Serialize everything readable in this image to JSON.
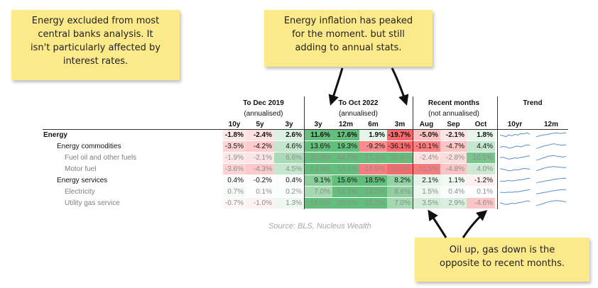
{
  "notes": {
    "note1": [
      "Energy excluded from most",
      "central banks analysis. It",
      "isn't particularly affected by",
      "interest rates."
    ],
    "note2": [
      "Energy inflation has peaked",
      "for the moment. but still",
      "adding to annual stats."
    ],
    "note3": [
      "Oil up, gas down is the",
      "opposite to recent months."
    ]
  },
  "source": "Source: BLS, Nucleus Wealth",
  "chart_data": {
    "type": "table",
    "groups": [
      {
        "title": "To Dec 2019",
        "subtitle": "(annualised)",
        "columns": [
          "10y",
          "5y",
          "3y"
        ]
      },
      {
        "title": "To Oct 2022",
        "subtitle": "(annualised)",
        "columns": [
          "3y",
          "12m",
          "6m",
          "3m"
        ]
      },
      {
        "title": "Recent months",
        "subtitle": "(not annualised)",
        "columns": [
          "Aug",
          "Sep",
          "Oct"
        ]
      },
      {
        "title": "Trend",
        "subtitle": "",
        "columns": [
          "10yr",
          "12m"
        ]
      }
    ],
    "rows": [
      {
        "label": "Energy",
        "level": 0,
        "bold": true,
        "muted": false,
        "values": [
          "-1.8%",
          "-2.4%",
          "2.6%",
          "11.6%",
          "17.6%",
          "1.9%",
          "-19.7%",
          "-5.0%",
          "-2.1%",
          "1.8%"
        ],
        "trend10": [
          0.5,
          0.45,
          0.3,
          0.55,
          0.4,
          0.6,
          0.5,
          0.7,
          0.65,
          0.8,
          0.6
        ],
        "trend12": [
          0.3,
          0.4,
          0.5,
          0.55,
          0.6,
          0.7,
          0.75,
          0.8,
          0.7,
          0.75,
          0.8
        ]
      },
      {
        "label": "Energy commodities",
        "level": 1,
        "bold": false,
        "muted": false,
        "values": [
          "-3.5%",
          "-4.2%",
          "4.6%",
          "13.6%",
          "19.3%",
          "-9.2%",
          "-36.1%",
          "-10.1%",
          "-4.7%",
          "4.4%"
        ],
        "trend10": [
          0.4,
          0.5,
          0.45,
          0.3,
          0.35,
          0.5,
          0.55,
          0.45,
          0.6,
          0.7,
          0.65
        ],
        "trend12": [
          0.25,
          0.35,
          0.5,
          0.6,
          0.65,
          0.8,
          0.85,
          0.75,
          0.7,
          0.65,
          0.7
        ]
      },
      {
        "label": "Fuel oil and other fuels",
        "level": 2,
        "bold": false,
        "muted": true,
        "values": [
          "-1.9%",
          "-2.1%",
          "6.6%",
          "20.3%",
          "44.2%",
          "17.3%",
          "20.9%",
          "-2.4%",
          "-2.8%",
          "10.5%"
        ],
        "trend10": [
          0.5,
          0.6,
          0.45,
          0.35,
          0.4,
          0.5,
          0.45,
          0.55,
          0.6,
          0.7,
          0.75
        ],
        "trend12": [
          0.2,
          0.3,
          0.45,
          0.55,
          0.7,
          0.75,
          0.8,
          0.7,
          0.65,
          0.6,
          0.7
        ]
      },
      {
        "label": "Motor fuel",
        "level": 2,
        "bold": false,
        "muted": true,
        "values": [
          "-3.6%",
          "-4.3%",
          "4.5%",
          "13.3%",
          "18.1%",
          "-10.5%",
          "-38.3%",
          "-10.5%",
          "-4.8%",
          "4.0%"
        ],
        "trend10": [
          0.55,
          0.5,
          0.4,
          0.3,
          0.35,
          0.45,
          0.4,
          0.5,
          0.6,
          0.55,
          0.5
        ],
        "trend12": [
          0.3,
          0.4,
          0.55,
          0.65,
          0.75,
          0.8,
          0.85,
          0.8,
          0.75,
          0.7,
          0.72
        ]
      },
      {
        "label": "Energy services",
        "level": 1,
        "bold": false,
        "muted": false,
        "values": [
          "0.4%",
          "-0.2%",
          "0.4%",
          "9.1%",
          "15.6%",
          "18.5%",
          "8.2%",
          "2.1%",
          "1.1%",
          "-1.2%"
        ],
        "trend10": [
          0.45,
          0.4,
          0.45,
          0.5,
          0.45,
          0.5,
          0.55,
          0.6,
          0.65,
          0.75,
          0.8
        ],
        "trend12": [
          0.2,
          0.3,
          0.35,
          0.45,
          0.5,
          0.55,
          0.65,
          0.7,
          0.75,
          0.8,
          0.78
        ]
      },
      {
        "label": "Electricity",
        "level": 2,
        "bold": false,
        "muted": true,
        "values": [
          "0.7%",
          "0.1%",
          "0.2%",
          "7.0%",
          "14.1%",
          "14.3%",
          "8.6%",
          "1.5%",
          "0.4%",
          "0.1%"
        ],
        "trend10": [
          0.45,
          0.42,
          0.44,
          0.46,
          0.45,
          0.5,
          0.52,
          0.58,
          0.65,
          0.72,
          0.8
        ],
        "trend12": [
          0.25,
          0.3,
          0.38,
          0.45,
          0.5,
          0.6,
          0.66,
          0.72,
          0.76,
          0.78,
          0.8
        ]
      },
      {
        "label": "Utility gas service",
        "level": 2,
        "bold": false,
        "muted": true,
        "values": [
          "-0.7%",
          "-1.0%",
          "1.3%",
          "16.0%",
          "20.0%",
          "31.2%",
          "7.0%",
          "3.5%",
          "2.9%",
          "-4.6%"
        ],
        "trend10": [
          0.55,
          0.45,
          0.35,
          0.4,
          0.5,
          0.45,
          0.55,
          0.6,
          0.7,
          0.8,
          0.75
        ],
        "trend12": [
          0.2,
          0.3,
          0.4,
          0.55,
          0.65,
          0.75,
          0.8,
          0.85,
          0.8,
          0.75,
          0.65
        ]
      }
    ]
  }
}
